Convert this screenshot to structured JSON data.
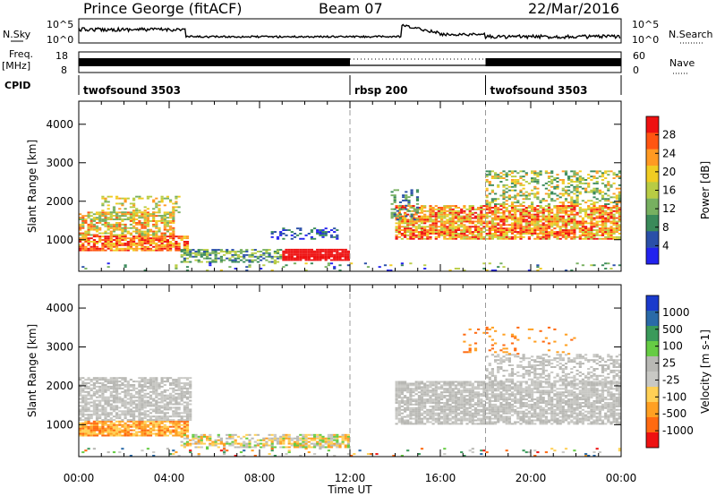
{
  "header": {
    "station": "Prince George (fitACF)",
    "beam": "Beam 07",
    "date": "22/Mar/2016"
  },
  "strips": {
    "nsky_label": "N.Sky",
    "nsearch_label": "N.Search",
    "nsky_ticks": [
      "10^5",
      "10^0"
    ],
    "nsearch_ticks": [
      "10^5",
      "10^0"
    ],
    "freq_label": "Freq.",
    "freq_unit": "[MHz]",
    "freq_ticks": [
      "18",
      "8"
    ],
    "nave_label": "Nave",
    "nave_ticks": [
      "60",
      "0"
    ],
    "cpid_label": "CPID",
    "cpid_segments": [
      {
        "label": "twofsound 3503",
        "start_hour": 0,
        "end_hour": 12
      },
      {
        "label": "rbsp 200",
        "start_hour": 12,
        "end_hour": 18
      },
      {
        "label": "twofsound 3503",
        "start_hour": 18,
        "end_hour": 24
      }
    ]
  },
  "colors": {
    "power": [
      "#2222ee",
      "#2a4fa8",
      "#3a8a5a",
      "#77b060",
      "#b8cc44",
      "#f0cc22",
      "#ff9a22",
      "#ff5511",
      "#ee1111"
    ],
    "velocity": [
      "#ee1111",
      "#ff6a11",
      "#ffa022",
      "#ffd055",
      "#c8c8c4",
      "#b8b8b4",
      "#66cc44",
      "#3a9a5a",
      "#2a6aa8",
      "#1a3acc"
    ]
  },
  "chart_data": [
    {
      "type": "heatmap",
      "title": "Power",
      "ylabel": "Slant Range [km]",
      "xlim": [
        0,
        24
      ],
      "ylim": [
        180,
        4600
      ],
      "yticks": [
        1000,
        2000,
        3000,
        4000
      ],
      "xticks": [
        "00:00",
        "04:00",
        "08:00",
        "12:00",
        "16:00",
        "20:00",
        "00:00"
      ],
      "colorbar": {
        "label": "Power [dB]",
        "ticks": [
          "28",
          "24",
          "20",
          "16",
          "12",
          "8",
          "4"
        ],
        "range": [
          0,
          30
        ]
      },
      "series": [
        {
          "x": [
            0,
            1,
            2,
            3,
            4,
            5,
            6,
            7,
            8,
            9,
            10,
            11,
            12,
            13,
            14,
            15,
            16,
            17,
            18,
            19,
            20,
            21,
            22,
            23,
            24
          ]
        }
      ]
    },
    {
      "type": "heatmap",
      "title": "Velocity",
      "ylabel": "Slant Range [km]",
      "xlabel": "Time UT",
      "xlim": [
        0,
        24
      ],
      "ylim": [
        180,
        4600
      ],
      "yticks": [
        1000,
        2000,
        3000,
        4000
      ],
      "xticks": [
        "00:00",
        "04:00",
        "08:00",
        "12:00",
        "16:00",
        "20:00",
        "00:00"
      ],
      "colorbar": {
        "label": "Velocity [m s-1]",
        "ticks": [
          "1000",
          "500",
          "100",
          "25",
          "-25",
          "-100",
          "-500",
          "-1000"
        ]
      }
    }
  ]
}
